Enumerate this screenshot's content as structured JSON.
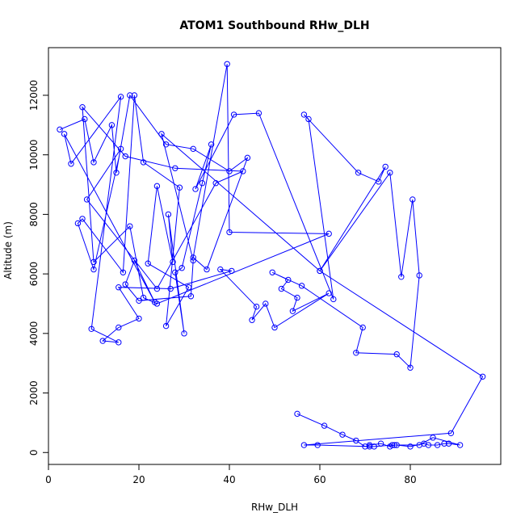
{
  "chart_data": {
    "type": "line",
    "title": "ATOM1 Southbound RHw_DLH",
    "xlabel": "RHw_DLH",
    "ylabel": "Altitude (m)",
    "xlim": [
      0,
      100
    ],
    "ylim": [
      -400,
      13600
    ],
    "xticks": [
      0,
      20,
      40,
      60,
      80
    ],
    "yticks": [
      0,
      2000,
      4000,
      6000,
      8000,
      10000,
      12000
    ],
    "grid": false,
    "color": "#0000ff",
    "marker": "open-circle",
    "series": [
      {
        "values": [
          [
            2.5,
            10850
          ],
          [
            8,
            11200
          ],
          [
            10,
            9750
          ],
          [
            14,
            11000
          ],
          [
            15,
            9400
          ],
          [
            18,
            12000
          ],
          [
            26,
            10350
          ],
          [
            32,
            10200
          ],
          [
            40,
            9450
          ],
          [
            44,
            9900
          ],
          [
            35,
            6150
          ],
          [
            32,
            6550
          ],
          [
            39.5,
            13050
          ],
          [
            40,
            7400
          ],
          [
            62,
            7350
          ],
          [
            24,
            5000
          ],
          [
            21,
            5200
          ],
          [
            18,
            7600
          ],
          [
            10,
            6400
          ],
          [
            7.5,
            11600
          ],
          [
            17,
            9950
          ],
          [
            28,
            9550
          ],
          [
            43,
            9450
          ],
          [
            37,
            9050
          ],
          [
            24,
            5500
          ],
          [
            8.5,
            8500
          ],
          [
            16,
            10200
          ],
          [
            10,
            6150
          ],
          [
            6.5,
            7700
          ],
          [
            7.5,
            7850
          ],
          [
            16.5,
            6050
          ],
          [
            19,
            12000
          ],
          [
            21,
            9750
          ],
          [
            29,
            8900
          ],
          [
            26,
            4250
          ],
          [
            31,
            5550
          ],
          [
            22,
            6350
          ],
          [
            24,
            8950
          ],
          [
            27.5,
            6400
          ],
          [
            26.5,
            8000
          ],
          [
            30,
            4000
          ],
          [
            28,
            6050
          ],
          [
            29.5,
            6200
          ],
          [
            34,
            9050
          ],
          [
            36,
            10350
          ],
          [
            32.5,
            8850
          ],
          [
            41,
            11350
          ],
          [
            46.5,
            11400
          ],
          [
            63,
            5150
          ],
          [
            57.5,
            11200
          ],
          [
            56.5,
            11350
          ],
          [
            68.5,
            9400
          ],
          [
            73,
            9100
          ],
          [
            74.5,
            9600
          ],
          [
            60,
            6100
          ],
          [
            75.5,
            9400
          ],
          [
            78,
            5900
          ],
          [
            80.5,
            8500
          ],
          [
            82,
            5950
          ],
          [
            80,
            2850
          ],
          [
            77,
            3300
          ],
          [
            68,
            3350
          ],
          [
            69.5,
            4200
          ],
          [
            56,
            5600
          ],
          [
            49.5,
            6050
          ],
          [
            53,
            5800
          ],
          [
            51.5,
            5500
          ],
          [
            55,
            5200
          ],
          [
            54,
            4750
          ],
          [
            62,
            5350
          ],
          [
            50,
            4200
          ],
          [
            48,
            5000
          ],
          [
            45,
            4450
          ],
          [
            46,
            4900
          ],
          [
            38,
            6150
          ],
          [
            40.5,
            6100
          ],
          [
            27,
            5500
          ],
          [
            15.5,
            5550
          ],
          [
            20,
            4500
          ],
          [
            15.5,
            4200
          ],
          [
            12,
            3750
          ],
          [
            15.5,
            3700
          ],
          [
            9.5,
            4150
          ],
          [
            16,
            11950
          ],
          [
            5,
            9700
          ],
          [
            3.5,
            10700
          ],
          [
            23.5,
            5050
          ],
          [
            19,
            6450
          ],
          [
            17,
            5650
          ],
          [
            20,
            5100
          ],
          [
            31.5,
            5250
          ],
          [
            32,
            6450
          ],
          [
            25,
            10700
          ],
          [
            60,
            6100
          ],
          [
            96,
            2550
          ],
          [
            89,
            650
          ],
          [
            56.5,
            250
          ],
          [
            59.5,
            250
          ],
          [
            71,
            200
          ],
          [
            72,
            200
          ],
          [
            76,
            250
          ],
          [
            77,
            250
          ],
          [
            80,
            200
          ],
          [
            83,
            300
          ],
          [
            84,
            250
          ],
          [
            86,
            250
          ],
          [
            87.5,
            300
          ],
          [
            88.5,
            300
          ],
          [
            91,
            250
          ],
          [
            85,
            500
          ],
          [
            82,
            250
          ],
          [
            76.5,
            250
          ],
          [
            75.5,
            200
          ],
          [
            73.5,
            300
          ],
          [
            71,
            250
          ],
          [
            70,
            200
          ],
          [
            68,
            400
          ],
          [
            65,
            600
          ],
          [
            61,
            900
          ],
          [
            55,
            1300
          ]
        ]
      }
    ]
  }
}
